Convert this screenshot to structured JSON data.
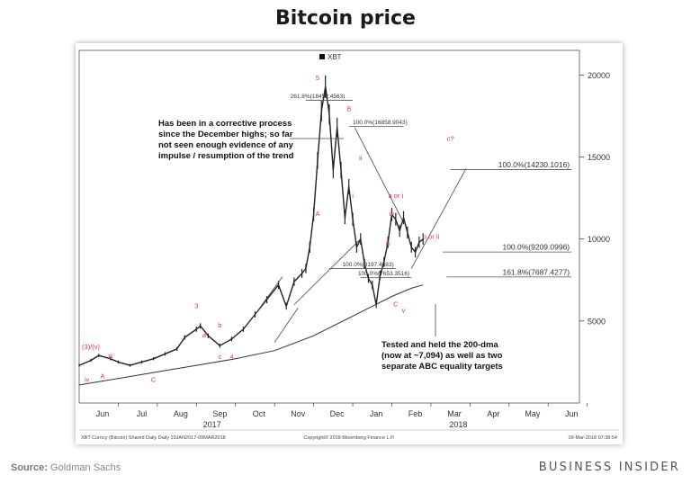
{
  "page": {
    "title": "Bitcoin price",
    "source_label": "Source:",
    "source_text": "Goldman Sachs",
    "brand": "BUSINESS INSIDER"
  },
  "chart_data": {
    "type": "line",
    "title": "Bitcoin price",
    "legend": "XBT",
    "ylim": [
      0,
      21500
    ],
    "yticks": [
      5000,
      10000,
      15000,
      20000
    ],
    "x_tick_labels": [
      "Jun",
      "Jul",
      "Aug",
      "Sep",
      "Oct",
      "Nov",
      "Dec",
      "Jan",
      "Feb",
      "Mar",
      "Apr",
      "May",
      "Jun"
    ],
    "year_labels": [
      "2017",
      "2018"
    ],
    "series": [
      {
        "name": "XBT",
        "x": [
          0,
          0.3,
          0.5,
          0.8,
          1.0,
          1.3,
          1.6,
          1.9,
          2.2,
          2.5,
          2.7,
          3.0,
          3.1,
          3.3,
          3.6,
          3.9,
          4.2,
          4.5,
          4.8,
          5.1,
          5.3,
          5.5,
          5.7,
          5.8,
          5.9,
          6.0,
          6.1,
          6.2,
          6.3,
          6.4,
          6.5,
          6.6,
          6.7,
          6.8,
          6.9,
          7.0,
          7.1,
          7.2,
          7.3,
          7.4,
          7.5,
          7.6,
          7.7,
          7.8,
          7.9,
          8.0,
          8.1,
          8.2,
          8.3,
          8.4,
          8.5,
          8.6,
          8.7,
          8.8
        ],
        "y": [
          2300,
          2600,
          2900,
          2700,
          2500,
          2300,
          2500,
          2700,
          3000,
          3300,
          4000,
          4500,
          4700,
          4100,
          3500,
          3900,
          4500,
          5400,
          6300,
          7200,
          5900,
          7400,
          7900,
          8200,
          9500,
          11500,
          14800,
          17800,
          19300,
          17600,
          14200,
          16800,
          14200,
          11300,
          13200,
          11200,
          9500,
          10000,
          8500,
          7600,
          7200,
          6000,
          7800,
          8600,
          9800,
          11500,
          11200,
          10500,
          11300,
          10400,
          9500,
          9200,
          9800,
          10000
        ]
      },
      {
        "name": "200-dma",
        "x": [
          0,
          1,
          2,
          3,
          4,
          5,
          6,
          7,
          7.5,
          8,
          8.5,
          8.8
        ],
        "y": [
          1100,
          1500,
          1900,
          2300,
          2700,
          3200,
          4100,
          5300,
          5900,
          6500,
          7000,
          7200
        ]
      }
    ],
    "annotations": [
      "Has been in a corrective process since the December highs; so far not seen enough evidence of any impulse / resumption of the trend",
      "Tested and held the 200-dma (now at ~7,094) as well as two separate ABC equality targets"
    ],
    "fib_labels": [
      "261.8%(18452.4563)",
      "100.0%(16858.9043)",
      "100.0%(14230.1016)",
      "100.0%(9209.0996)",
      "161.8%(7687.4277)",
      "100.0%(8197.4883)",
      "100.0%(7653.3516)"
    ],
    "wave_labels": [
      "(3)/(v)",
      "iv",
      "A",
      "B",
      "C",
      "3",
      "a",
      "b",
      "c",
      "4",
      "5",
      "A",
      "B",
      "i",
      "ii",
      "iii",
      "iv",
      "a or i",
      "b or ii",
      "c?",
      "C",
      "v"
    ],
    "footer_left": "XBT Curncy (Bitcoin) Shared Daily  Daily 19JAN2017-09MAR2018",
    "footer_center": "Copyright© 2018 Bloomberg Finance L.P.",
    "footer_right": "09-Mar-2018 07:38:54",
    "grid": false
  }
}
